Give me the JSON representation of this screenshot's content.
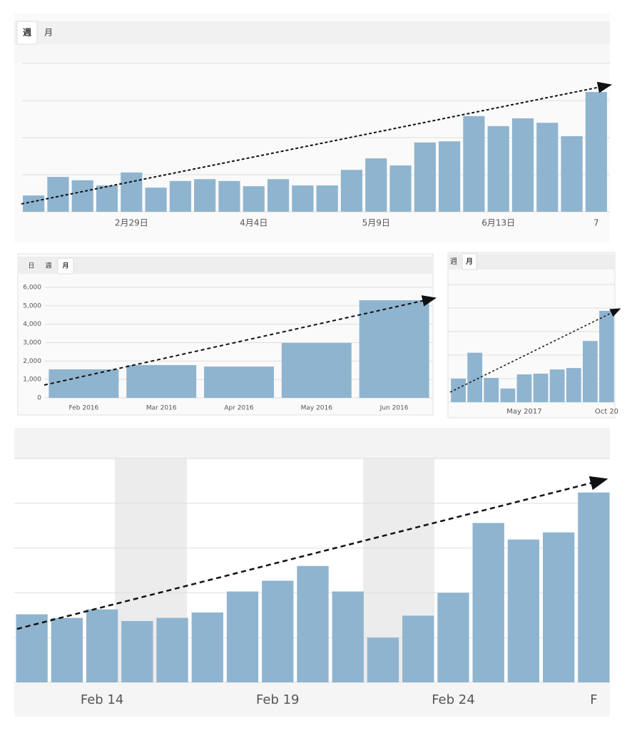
{
  "chart_data": [
    {
      "type": "bar",
      "tabs": [
        "週",
        "月"
      ],
      "active_tab": 0,
      "color": "#8fb4cf",
      "grid": true,
      "ytick_labels": false,
      "categories": [
        null,
        null,
        null,
        null,
        "2月29日",
        null,
        null,
        null,
        null,
        "4月4日",
        null,
        null,
        null,
        null,
        "5月9日",
        null,
        null,
        null,
        null,
        "6月13日",
        null,
        null,
        null,
        "7"
      ],
      "values": [
        0.44,
        0.94,
        0.85,
        0.71,
        1.06,
        0.65,
        0.83,
        0.88,
        0.83,
        0.69,
        0.88,
        0.71,
        0.71,
        1.13,
        1.44,
        1.25,
        1.87,
        1.9,
        2.58,
        2.31,
        2.52,
        2.4,
        2.04,
        3.23
      ],
      "ylim": [
        0,
        4
      ],
      "yticks": [
        0,
        1,
        2,
        3,
        4
      ]
    },
    {
      "type": "bar",
      "tabs": [
        "日",
        "週",
        "月"
      ],
      "active_tab": 2,
      "color": "#8fb4cf",
      "grid": true,
      "ytick_labels": true,
      "categories": [
        "Feb 2016",
        "Mar 2016",
        "Apr 2016",
        "May 2016",
        "Jun 2016"
      ],
      "values": [
        1550,
        1780,
        1700,
        2980,
        5300
      ],
      "ylim": [
        0,
        6000
      ],
      "yticks": [
        0,
        {
          "value": 1000,
          "label": "1,000"
        },
        {
          "value": 2000,
          "label": "2,000"
        },
        {
          "value": 3000,
          "label": "3,000"
        },
        {
          "value": 4000,
          "label": "4,000"
        },
        {
          "value": 5000,
          "label": "5,000"
        },
        {
          "value": 6000,
          "label": "6,000"
        }
      ]
    },
    {
      "type": "bar",
      "tabs": [
        "週",
        "月"
      ],
      "active_tab": 1,
      "color": "#8fb4cf",
      "grid": true,
      "ytick_labels": false,
      "categories": [
        null,
        null,
        null,
        null,
        "May 2017",
        null,
        null,
        null,
        null,
        "Oct 20"
      ],
      "values": [
        1.0,
        2.1,
        1.03,
        0.58,
        1.18,
        1.21,
        1.39,
        1.45,
        2.6,
        3.88
      ],
      "ylim": [
        0,
        5
      ],
      "yticks": [
        0,
        1,
        2,
        3,
        4,
        5
      ]
    },
    {
      "type": "bar",
      "color": "#8fb4cf",
      "grid": true,
      "ytick_labels": false,
      "categories": [
        null,
        null,
        "Feb 14",
        null,
        null,
        null,
        null,
        "Feb 19",
        null,
        null,
        null,
        null,
        "Feb 24",
        null,
        null,
        null,
        "F"
      ],
      "values": [
        1.52,
        1.44,
        1.63,
        1.37,
        1.44,
        1.56,
        2.03,
        2.27,
        2.6,
        2.03,
        1.0,
        1.49,
        2.0,
        3.56,
        3.19,
        3.35,
        4.24
      ],
      "ylim": [
        0,
        5
      ],
      "yticks": [
        0,
        1,
        2,
        3,
        4,
        5
      ]
    }
  ]
}
